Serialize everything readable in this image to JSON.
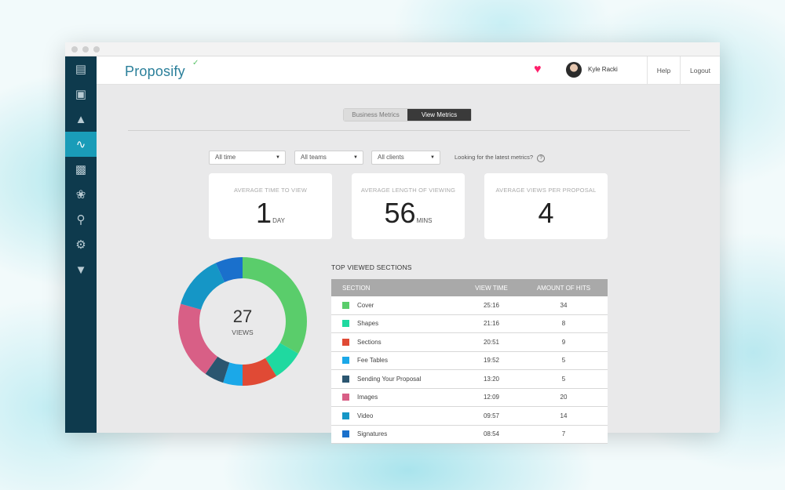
{
  "header": {
    "logo": "Proposify",
    "user_name": "Kyle Racki",
    "help_label": "Help",
    "logout_label": "Logout"
  },
  "sidebar": {
    "icons": [
      "proposal-icon",
      "inbox-icon",
      "user-icon",
      "activity-icon",
      "gift-icon",
      "handshake-icon",
      "location-icon",
      "settings-icon",
      "integration-icon"
    ],
    "active_index": 3
  },
  "tabs": {
    "business": "Business Metrics",
    "view": "View Metrics",
    "active": "view"
  },
  "filters": {
    "time": "All time",
    "teams": "All teams",
    "clients": "All clients",
    "latest_text": "Looking for the latest metrics?",
    "help_mark": "?"
  },
  "cards": [
    {
      "label": "AVERAGE TIME TO VIEW",
      "value": "1",
      "unit": "DAY"
    },
    {
      "label": "AVERAGE LENGTH OF VIEWING",
      "value": "56",
      "unit": "MINS"
    },
    {
      "label": "AVERAGE VIEWS PER PROPOSAL",
      "value": "4",
      "unit": ""
    }
  ],
  "donut": {
    "total": "27",
    "label": "VIEWS"
  },
  "table": {
    "title": "TOP VIEWED SECTIONS",
    "headers": [
      "SECTION",
      "VIEW TIME",
      "AMOUNT OF HITS"
    ],
    "rows": [
      {
        "section": "Cover",
        "time": "25:16",
        "hits": "34",
        "color": "#5acd6b"
      },
      {
        "section": "Shapes",
        "time": "21:16",
        "hits": "8",
        "color": "#1fd9a0"
      },
      {
        "section": "Sections",
        "time": "20:51",
        "hits": "9",
        "color": "#e04a35"
      },
      {
        "section": "Fee Tables",
        "time": "19:52",
        "hits": "5",
        "color": "#1ba8e8"
      },
      {
        "section": "Sending Your Proposal",
        "time": "13:20",
        "hits": "5",
        "color": "#2b5670"
      },
      {
        "section": "Images",
        "time": "12:09",
        "hits": "20",
        "color": "#d85f86"
      },
      {
        "section": "Video",
        "time": "09:57",
        "hits": "14",
        "color": "#1596c6"
      },
      {
        "section": "Signatures",
        "time": "08:54",
        "hits": "7",
        "color": "#1a70cc"
      }
    ]
  }
}
